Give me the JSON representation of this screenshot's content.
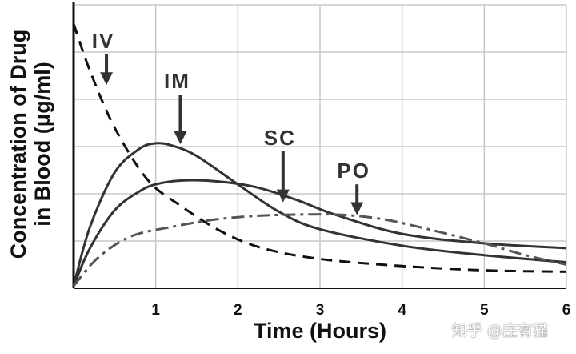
{
  "chart_data": {
    "type": "line",
    "xlabel": "Time (Hours)",
    "ylabel_lines": [
      "Concentration of Drug",
      "in Blood (μg/ml)"
    ],
    "xlim": [
      0,
      6
    ],
    "ylim": [
      0,
      6
    ],
    "x_ticks": [
      "1",
      "2",
      "3",
      "4",
      "5",
      "6"
    ],
    "grid": true,
    "legend": "none",
    "series": [
      {
        "name": "IV",
        "style": "dashed",
        "color": "#111111",
        "points": [
          [
            0,
            5.6
          ],
          [
            0.2,
            4.6
          ],
          [
            0.5,
            3.4
          ],
          [
            0.9,
            2.3
          ],
          [
            1.3,
            1.75
          ],
          [
            1.8,
            1.2
          ],
          [
            2.3,
            0.85
          ],
          [
            3.0,
            0.62
          ],
          [
            4.0,
            0.47
          ],
          [
            5.0,
            0.38
          ],
          [
            6.0,
            0.35
          ]
        ]
      },
      {
        "name": "IM",
        "style": "solid",
        "color": "#333333",
        "points": [
          [
            0,
            0.05
          ],
          [
            0.2,
            1.3
          ],
          [
            0.5,
            2.45
          ],
          [
            0.8,
            2.95
          ],
          [
            1.0,
            3.07
          ],
          [
            1.2,
            3.02
          ],
          [
            1.5,
            2.8
          ],
          [
            2.0,
            2.2
          ],
          [
            2.5,
            1.62
          ],
          [
            3.0,
            1.25
          ],
          [
            4.0,
            0.9
          ],
          [
            5.0,
            0.7
          ],
          [
            6.0,
            0.55
          ]
        ]
      },
      {
        "name": "SC",
        "style": "solid",
        "color": "#333333",
        "points": [
          [
            0,
            0.05
          ],
          [
            0.2,
            0.85
          ],
          [
            0.5,
            1.65
          ],
          [
            0.8,
            2.05
          ],
          [
            1.0,
            2.2
          ],
          [
            1.3,
            2.28
          ],
          [
            1.7,
            2.27
          ],
          [
            2.2,
            2.15
          ],
          [
            2.7,
            1.88
          ],
          [
            3.2,
            1.55
          ],
          [
            4.0,
            1.15
          ],
          [
            5.0,
            0.95
          ],
          [
            6.0,
            0.85
          ]
        ]
      },
      {
        "name": "PO",
        "style": "dashdot",
        "color": "#555555",
        "points": [
          [
            0,
            0.05
          ],
          [
            0.3,
            0.65
          ],
          [
            0.7,
            1.1
          ],
          [
            1.2,
            1.3
          ],
          [
            1.7,
            1.45
          ],
          [
            2.2,
            1.53
          ],
          [
            2.7,
            1.56
          ],
          [
            3.2,
            1.56
          ],
          [
            3.7,
            1.48
          ],
          [
            4.2,
            1.3
          ],
          [
            5.0,
            0.95
          ],
          [
            5.5,
            0.7
          ],
          [
            6.0,
            0.5
          ]
        ]
      }
    ],
    "annotations": [
      {
        "label": "IV",
        "arrow_x": 0.4,
        "arrow_top_y": 4.95,
        "arrow_tip_y": 4.3
      },
      {
        "label": "IM",
        "arrow_x": 1.3,
        "arrow_top_y": 4.1,
        "arrow_tip_y": 3.05
      },
      {
        "label": "SC",
        "arrow_x": 2.55,
        "arrow_top_y": 2.9,
        "arrow_tip_y": 1.82
      },
      {
        "label": "PO",
        "arrow_x": 3.45,
        "arrow_top_y": 2.2,
        "arrow_tip_y": 1.55
      }
    ]
  },
  "watermark": "知乎 @庄有猫"
}
